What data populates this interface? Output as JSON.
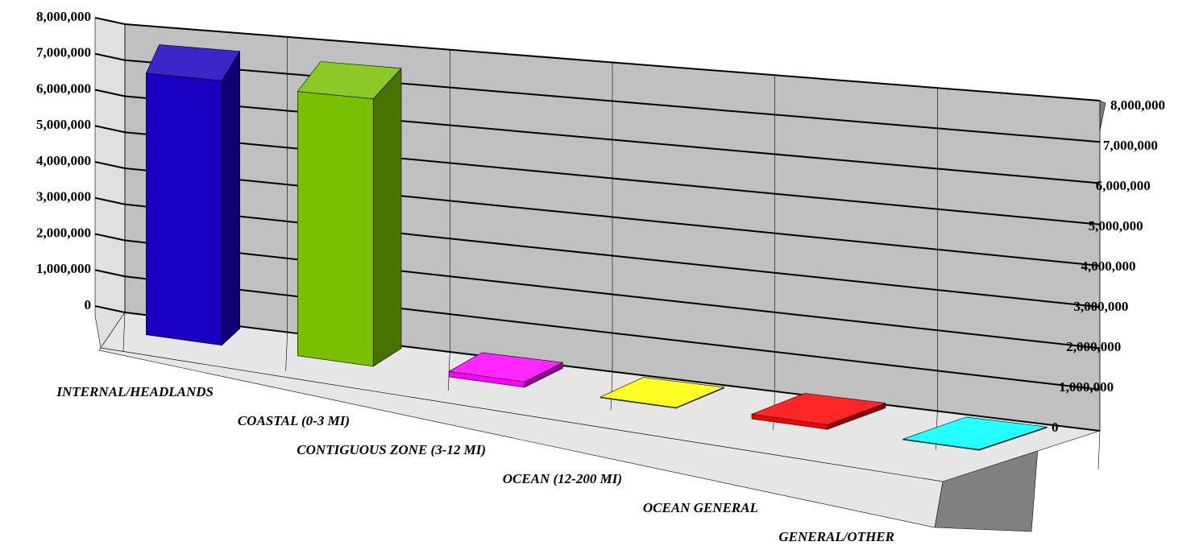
{
  "chart_data": {
    "type": "bar3d",
    "categories": [
      "INTERNAL/HEADLANDS",
      "COASTAL (0-3 MI)",
      "CONTIGUOUS ZONE (3-12 MI)",
      "OCEAN (12-200 MI)",
      "OCEAN GENERAL",
      "GENERAL/OTHER"
    ],
    "values": [
      7600000,
      7500000,
      150000,
      20000,
      120000,
      20000
    ],
    "colors": [
      "#1a00c0",
      "#78c000",
      "#ff00ff",
      "#ffff00",
      "#ff0000",
      "#00ffff"
    ],
    "ylim": [
      0,
      8000000
    ],
    "yticks": [
      0,
      {
        "value": 1000000,
        "label": "1,000,000"
      },
      {
        "value": 2000000,
        "label": "2,000,000"
      },
      {
        "value": 3000000,
        "label": "3,000,000"
      },
      {
        "value": 4000000,
        "label": "4,000,000"
      },
      {
        "value": 5000000,
        "label": "5,000,000"
      },
      {
        "value": 6000000,
        "label": "6,000,000"
      },
      {
        "value": 7000000,
        "label": "7,000,000"
      },
      {
        "value": 8000000,
        "label": "8,000,000"
      }
    ],
    "y2lim": [
      0,
      8000000
    ],
    "y2ticks": [
      0,
      {
        "value": 1000000,
        "label": "1,000,000"
      },
      {
        "value": 2000000,
        "label": "2,000,000"
      },
      {
        "value": 3000000,
        "label": "3,000,000"
      },
      {
        "value": 4000000,
        "label": "4,000,000"
      },
      {
        "value": 5000000,
        "label": "5,000,000"
      },
      {
        "value": 6000000,
        "label": "6,000,000"
      },
      {
        "value": 7000000,
        "label": "7,000,000"
      },
      {
        "value": 8000000,
        "label": "8,000,000"
      }
    ],
    "grid": true
  }
}
